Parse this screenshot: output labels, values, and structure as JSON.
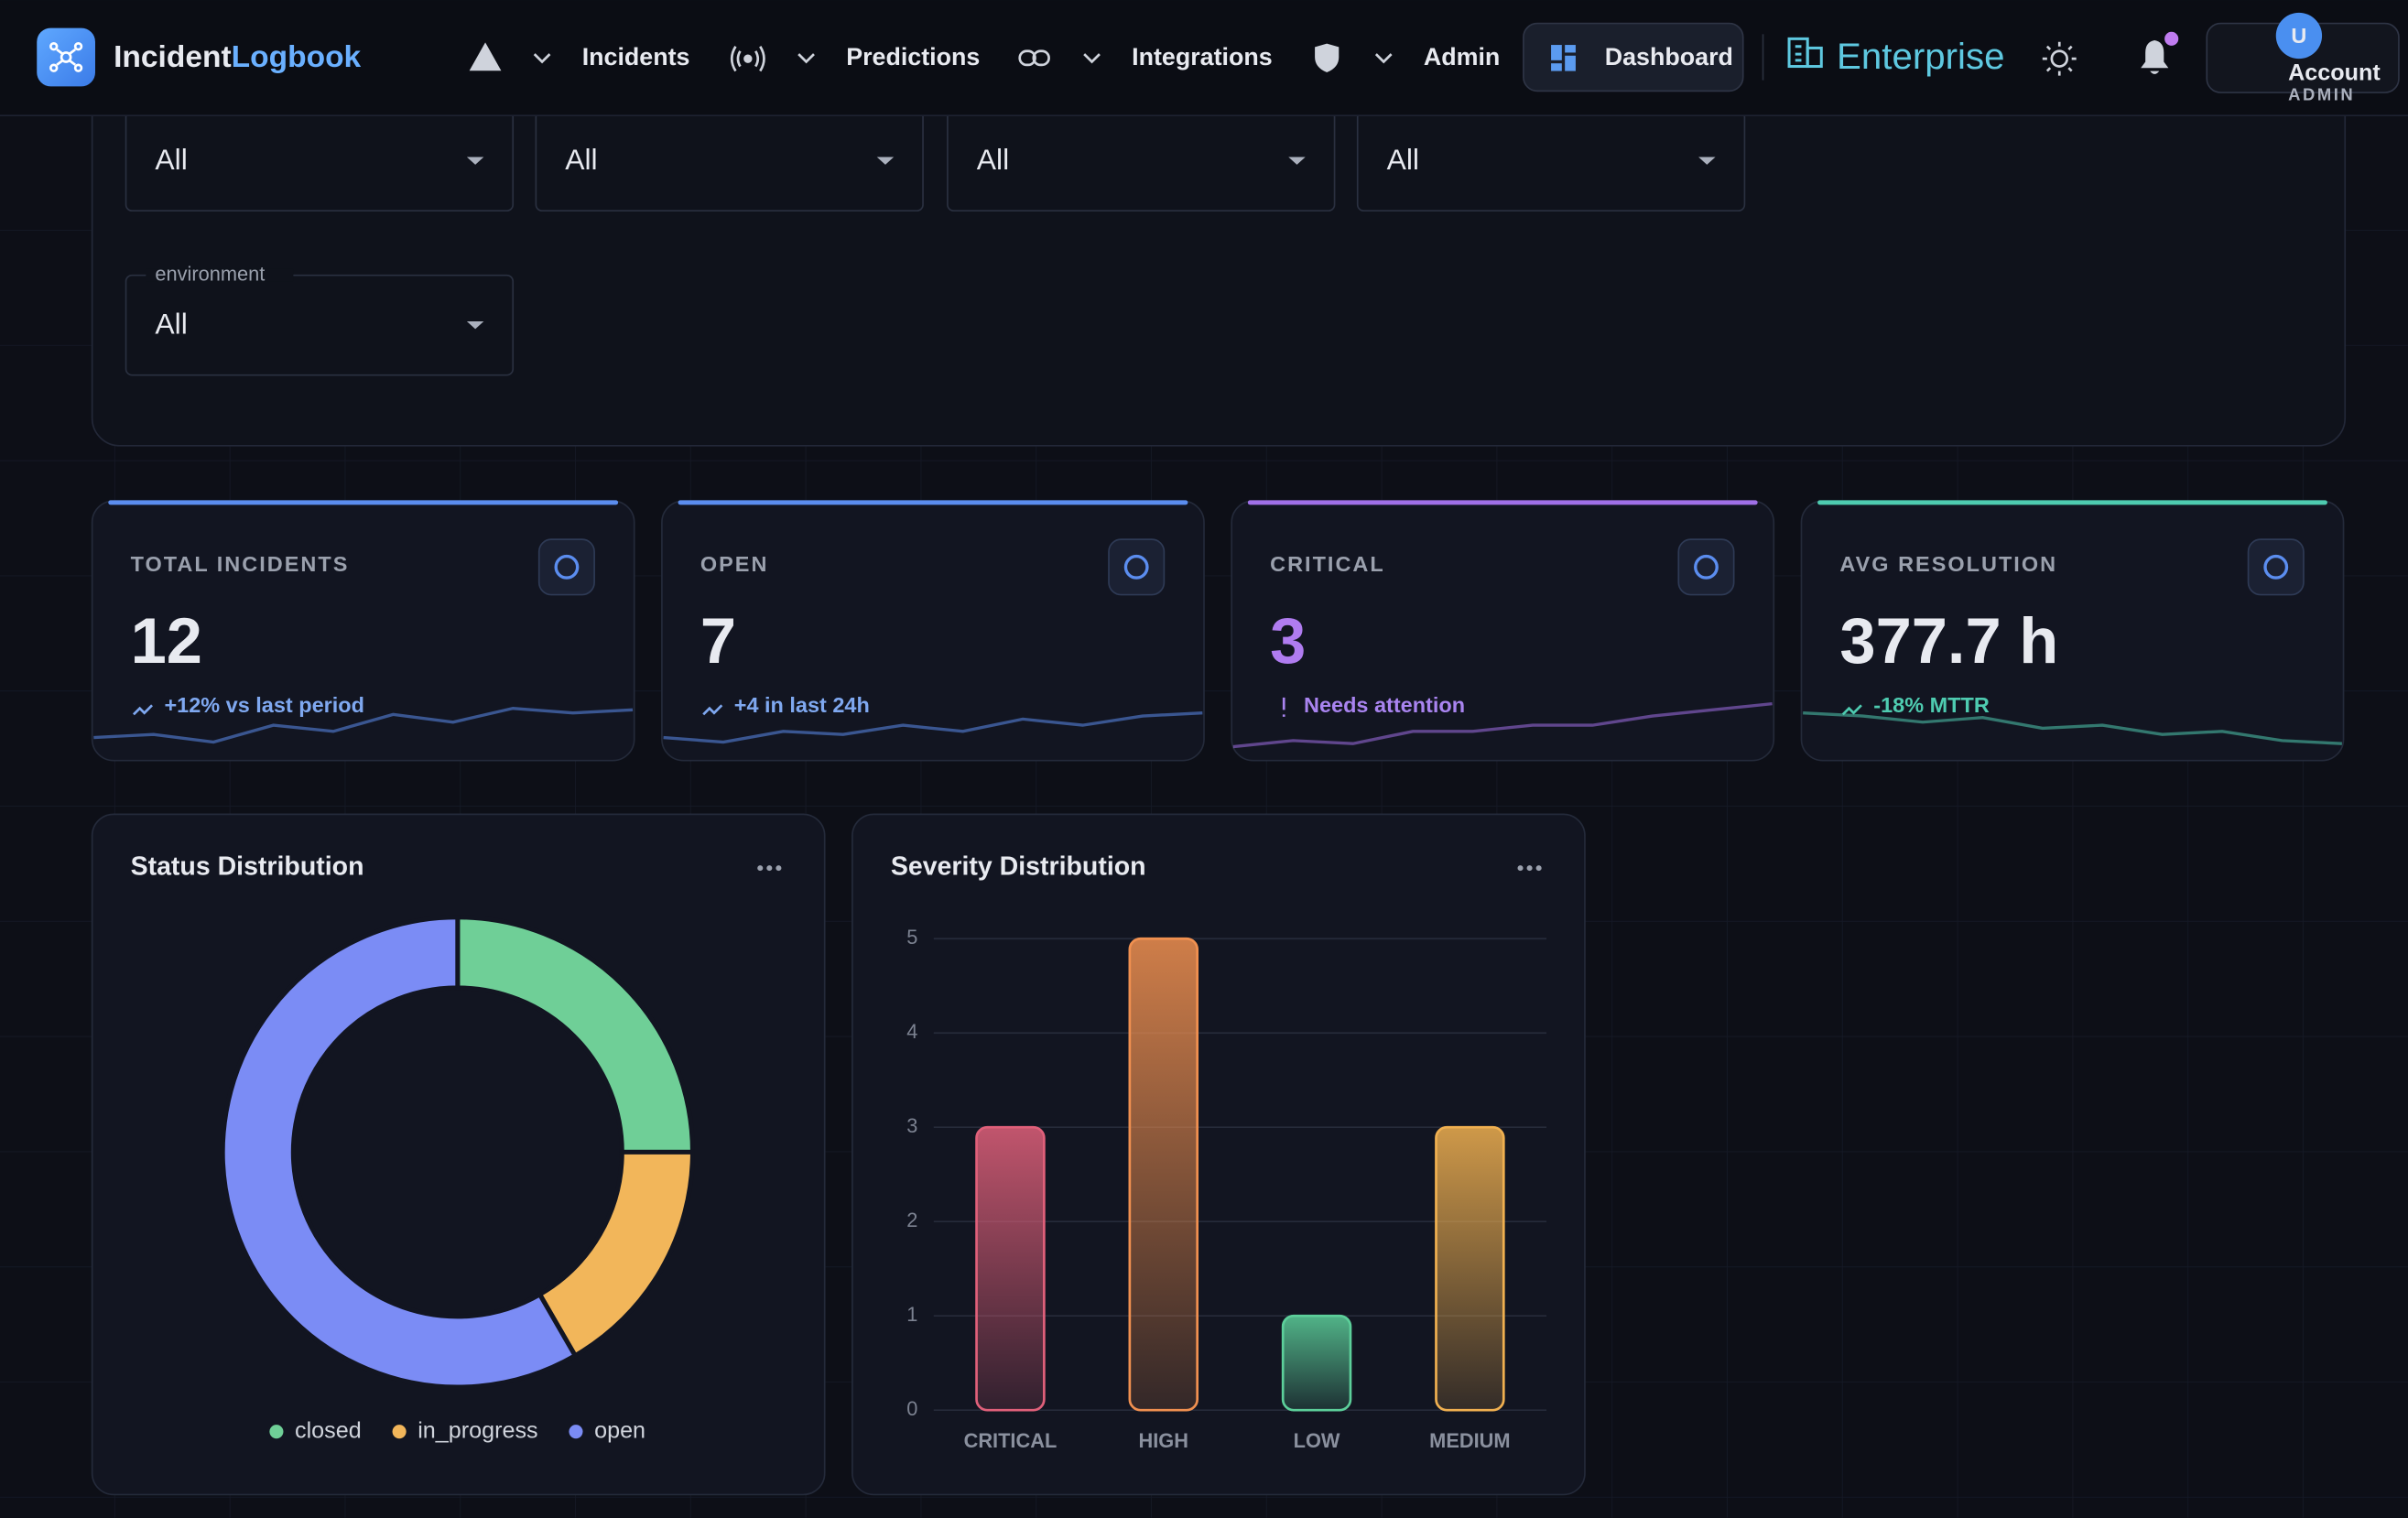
{
  "nav": {
    "brand_a": "Incident",
    "brand_b": "Logbook",
    "items": [
      "Incidents",
      "Predictions",
      "Integrations",
      "Admin"
    ],
    "dashboard": "Dashboard",
    "edition": "Enterprise",
    "avatar": "U",
    "account": "Account",
    "role": "ADMIN"
  },
  "filters": {
    "values": [
      "All",
      "All",
      "All",
      "All"
    ],
    "environment_label": "environment",
    "environment_value": "All"
  },
  "kpis": [
    {
      "label": "TOTAL INCIDENTS",
      "value": 12,
      "note": "+12% vs last period"
    },
    {
      "label": "OPEN",
      "value": 7,
      "note": "+4 in last 24h"
    },
    {
      "label": "CRITICAL",
      "value": 3,
      "note": "Needs attention"
    },
    {
      "label": "AVG RESOLUTION",
      "value": 377.7,
      "unit": "h",
      "note": "-18% MTTR"
    }
  ],
  "charts": [
    {
      "type": "pie",
      "title": "Status Distribution",
      "categories": [
        "closed",
        "in_progress",
        "open"
      ],
      "values": [
        3,
        2,
        7
      ],
      "colors": [
        "#6fcf97",
        "#f2b65a",
        "#7b8cf5"
      ]
    },
    {
      "type": "bar",
      "title": "Severity Distribution",
      "categories": [
        "CRITICAL",
        "HIGH",
        "LOW",
        "MEDIUM"
      ],
      "values": [
        3,
        5,
        1,
        3
      ],
      "colors": [
        "#e0607a",
        "#f09050",
        "#5ccf9a",
        "#f0b050"
      ],
      "ylim": [
        0,
        5
      ],
      "yticks": [
        0,
        1,
        2,
        3,
        4,
        5
      ],
      "grid": true
    }
  ]
}
